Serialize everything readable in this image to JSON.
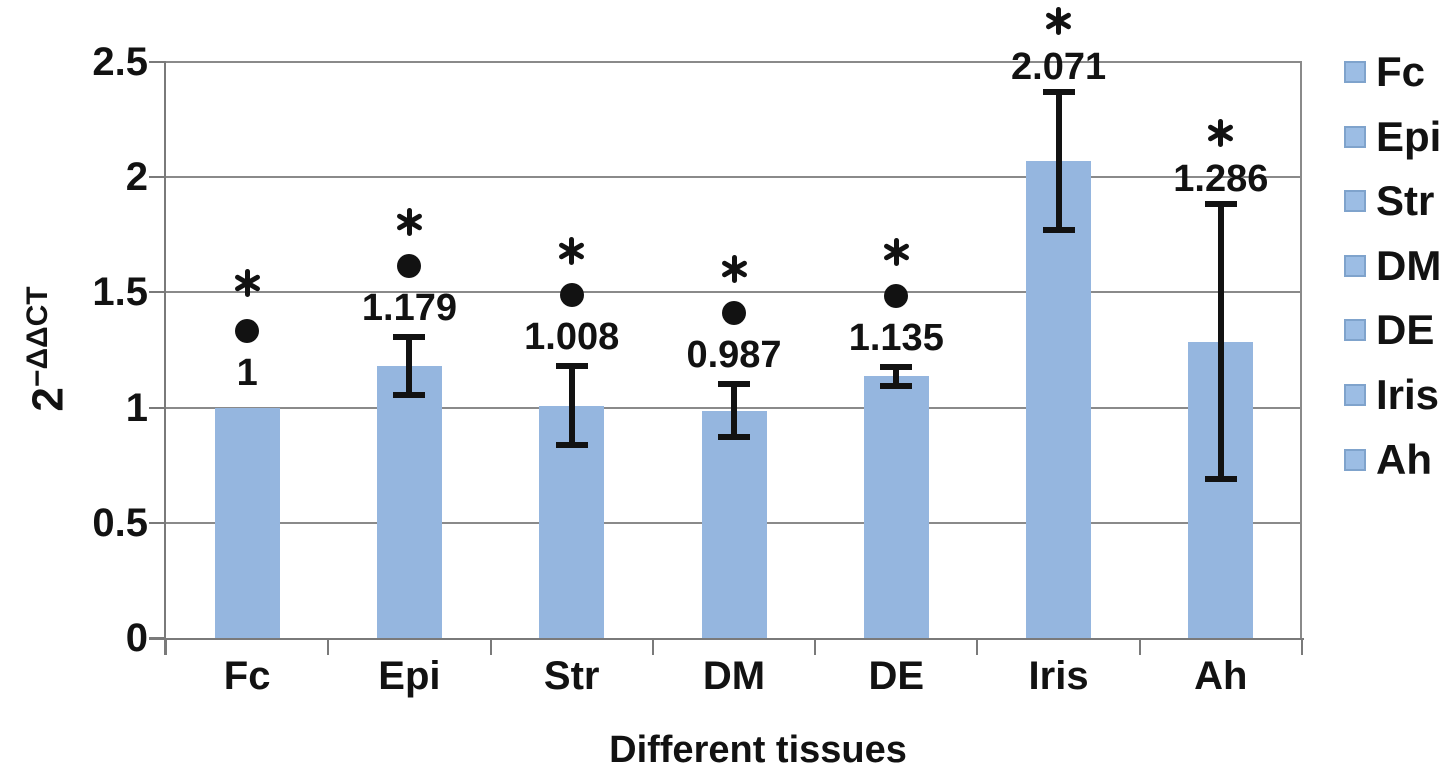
{
  "chart_data": {
    "type": "bar",
    "title": "",
    "xlabel": "Different tissues",
    "ylabel": "2^(-ΔΔCT)",
    "ylabel_base": "2",
    "ylabel_exponent": "−ΔΔCT",
    "ylim": [
      0,
      2.5
    ],
    "ytick_values": [
      0,
      0.5,
      1,
      1.5,
      2,
      2.5
    ],
    "ytick_labels": [
      "0",
      "0.5",
      "1",
      "1.5",
      "2",
      "2.5"
    ],
    "grid": true,
    "legend_position": "right",
    "categories": [
      "Fc",
      "Epi",
      "Str",
      "DM",
      "DE",
      "Iris",
      "Ah"
    ],
    "series": [
      {
        "name": "2^(-ΔΔCT)",
        "values": [
          1,
          1.179,
          1.008,
          0.987,
          1.135,
          2.071,
          1.286
        ]
      }
    ],
    "value_labels": [
      "1",
      "1.179",
      "1.008",
      "0.987",
      "1.135",
      "2.071",
      "1.286"
    ],
    "error_bars": [
      null,
      0.13,
      0.175,
      0.12,
      0.045,
      0.305,
      0.6
    ],
    "significance_star": [
      true,
      true,
      true,
      true,
      true,
      true,
      true
    ],
    "significance_dot": [
      true,
      true,
      true,
      true,
      true,
      false,
      false
    ],
    "legend_items": [
      "Fc",
      "Epi",
      "Str",
      "DM",
      "DE",
      "Iris",
      "Ah"
    ]
  },
  "colors": {
    "bar_fill": "#95B6DF",
    "legend_fill": "#9CBDE4",
    "legend_border": "#7FA3CC",
    "gridline": "#8A8A8A",
    "axis": "#7A7A7A",
    "text": "#121212",
    "marker": "#121212"
  }
}
